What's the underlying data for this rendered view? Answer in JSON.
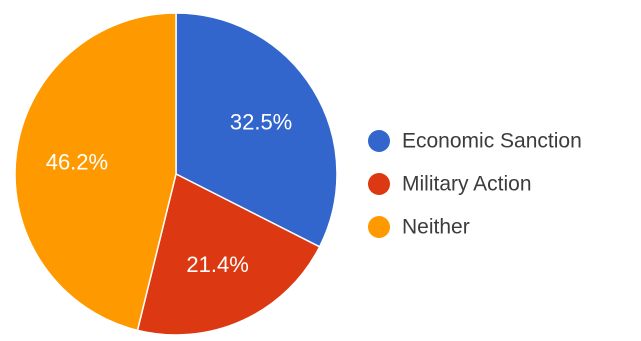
{
  "chart_data": {
    "type": "pie",
    "categories": [
      "Economic Sanction",
      "Military Action",
      "Neither"
    ],
    "values": [
      32.5,
      21.4,
      46.2
    ],
    "data_labels": [
      "32.5%",
      "21.4%",
      "46.2%"
    ],
    "colors": [
      "#3366cc",
      "#dc3912",
      "#ff9900"
    ],
    "start_angle_deg": 0,
    "direction": "clockwise",
    "legend_position": "right",
    "title": ""
  }
}
